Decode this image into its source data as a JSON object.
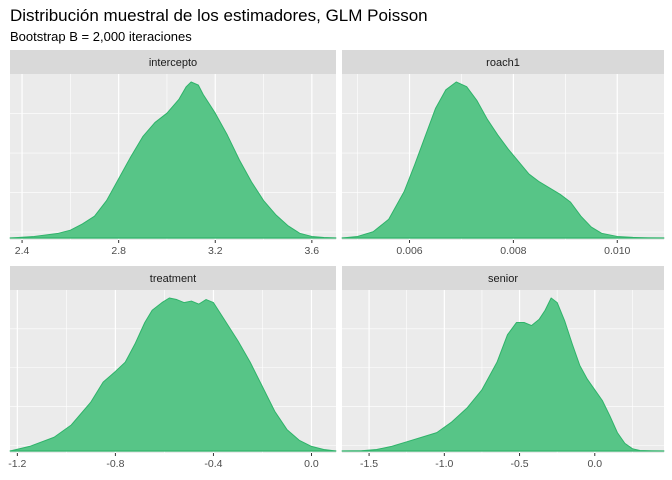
{
  "title": "Distribución muestral de los estimadores, GLM Poisson",
  "subtitle": "Bootstrap B = 2,000 iteraciones",
  "colors": {
    "fill": "#57c587",
    "stroke": "#2fb36a",
    "panel_bg": "#ebebeb",
    "strip_bg": "#d9d9d9"
  },
  "chart_data": [
    {
      "type": "area",
      "facet": "intercepto",
      "xlim": [
        2.35,
        3.7
      ],
      "ylim": [
        0,
        1.0
      ],
      "ticks": [
        2.4,
        2.8,
        3.2,
        3.6
      ],
      "tick_labels": [
        "2.4",
        "2.8",
        "3.2",
        "3.6"
      ],
      "x": [
        2.35,
        2.45,
        2.55,
        2.6,
        2.65,
        2.7,
        2.75,
        2.8,
        2.85,
        2.9,
        2.95,
        3.0,
        3.05,
        3.08,
        3.1,
        3.13,
        3.15,
        3.2,
        3.25,
        3.3,
        3.35,
        3.4,
        3.45,
        3.5,
        3.55,
        3.6,
        3.65,
        3.7
      ],
      "y": [
        0.0,
        0.01,
        0.03,
        0.05,
        0.09,
        0.14,
        0.24,
        0.38,
        0.52,
        0.65,
        0.74,
        0.8,
        0.89,
        0.97,
        1.0,
        0.98,
        0.92,
        0.8,
        0.66,
        0.5,
        0.36,
        0.24,
        0.15,
        0.08,
        0.03,
        0.01,
        0.003,
        0.0
      ]
    },
    {
      "type": "area",
      "facet": "roach1",
      "xlim": [
        0.0047,
        0.0109
      ],
      "ylim": [
        0,
        1.0
      ],
      "ticks": [
        0.006,
        0.008,
        0.01
      ],
      "tick_labels": [
        "0.006",
        "0.008",
        "0.010"
      ],
      "x": [
        0.0047,
        0.005,
        0.0053,
        0.0056,
        0.0059,
        0.0061,
        0.0063,
        0.0065,
        0.0067,
        0.0069,
        0.0071,
        0.0073,
        0.0075,
        0.0077,
        0.0079,
        0.0081,
        0.0083,
        0.0085,
        0.0087,
        0.0089,
        0.0091,
        0.0093,
        0.0095,
        0.0097,
        0.01,
        0.0103,
        0.0106,
        0.0109
      ],
      "y": [
        0.0,
        0.01,
        0.04,
        0.12,
        0.3,
        0.47,
        0.65,
        0.83,
        0.95,
        1.0,
        0.97,
        0.88,
        0.76,
        0.66,
        0.57,
        0.49,
        0.41,
        0.36,
        0.32,
        0.28,
        0.23,
        0.14,
        0.07,
        0.03,
        0.01,
        0.004,
        0.001,
        0.0
      ]
    },
    {
      "type": "area",
      "facet": "treatment",
      "xlim": [
        -1.23,
        0.1
      ],
      "ylim": [
        0,
        1.0
      ],
      "ticks": [
        -1.2,
        -0.8,
        -0.4,
        0.0
      ],
      "tick_labels": [
        "-1.2",
        "-0.8",
        "-0.4",
        "0.0"
      ],
      "x": [
        -1.23,
        -1.15,
        -1.05,
        -0.98,
        -0.9,
        -0.85,
        -0.8,
        -0.76,
        -0.72,
        -0.68,
        -0.65,
        -0.61,
        -0.58,
        -0.55,
        -0.52,
        -0.49,
        -0.46,
        -0.43,
        -0.4,
        -0.36,
        -0.3,
        -0.25,
        -0.2,
        -0.15,
        -0.1,
        -0.05,
        0.0,
        0.05,
        0.1
      ],
      "y": [
        0.0,
        0.03,
        0.09,
        0.17,
        0.32,
        0.45,
        0.52,
        0.58,
        0.7,
        0.84,
        0.92,
        0.97,
        1.0,
        0.99,
        0.97,
        0.98,
        0.96,
        0.99,
        0.97,
        0.87,
        0.72,
        0.58,
        0.42,
        0.26,
        0.14,
        0.07,
        0.03,
        0.01,
        0.0
      ]
    },
    {
      "type": "area",
      "facet": "senior",
      "xlim": [
        -1.68,
        0.46
      ],
      "ylim": [
        0,
        1.0
      ],
      "ticks": [
        -1.5,
        -1.0,
        -0.5,
        0.0
      ],
      "tick_labels": [
        "-1.5",
        "-1.0",
        "-0.5",
        "0.0"
      ],
      "x": [
        -1.68,
        -1.55,
        -1.45,
        -1.35,
        -1.25,
        -1.15,
        -1.05,
        -0.95,
        -0.85,
        -0.75,
        -0.65,
        -0.58,
        -0.52,
        -0.47,
        -0.42,
        -0.37,
        -0.33,
        -0.29,
        -0.25,
        -0.2,
        -0.15,
        -0.1,
        -0.05,
        0.0,
        0.05,
        0.1,
        0.15,
        0.2,
        0.25,
        0.3,
        0.38,
        0.46
      ],
      "y": [
        0.0,
        0.002,
        0.01,
        0.03,
        0.06,
        0.09,
        0.12,
        0.19,
        0.28,
        0.4,
        0.58,
        0.76,
        0.84,
        0.84,
        0.82,
        0.86,
        0.92,
        1.0,
        0.97,
        0.85,
        0.7,
        0.56,
        0.47,
        0.4,
        0.33,
        0.23,
        0.12,
        0.05,
        0.015,
        0.003,
        0.001,
        0.0
      ]
    }
  ]
}
